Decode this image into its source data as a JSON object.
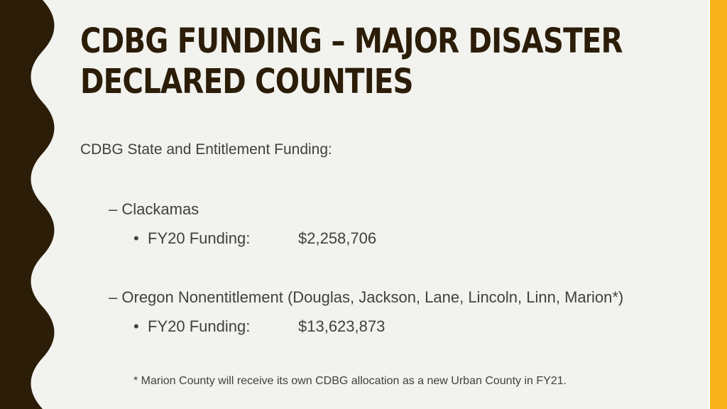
{
  "slide": {
    "title_lines": [
      "CDBG FUNDING – MAJOR DISASTER",
      "DECLARED COUNTIES"
    ],
    "intro": "CDBG State and Entitlement Funding:",
    "groups": [
      {
        "dash": "–",
        "heading": "Clackamas",
        "bullet": "•",
        "funding_label": "FY20 Funding:",
        "funding_value": "$2,258,706"
      },
      {
        "dash": "–",
        "heading": "Oregon Nonentitlement (Douglas, Jackson, Lane, Lincoln, Linn, Marion*)",
        "bullet": "•",
        "funding_label": "FY20 Funding:",
        "funding_value": "$13,623,873"
      }
    ],
    "footnote": "* Marion County will receive its own CDBG allocation as a new Urban County in FY21."
  },
  "colors": {
    "background": "#f2f2ef",
    "wave": "#2b1d07",
    "accent": "#f9b21c",
    "title": "#2b1d07",
    "body_text": "#404040"
  }
}
